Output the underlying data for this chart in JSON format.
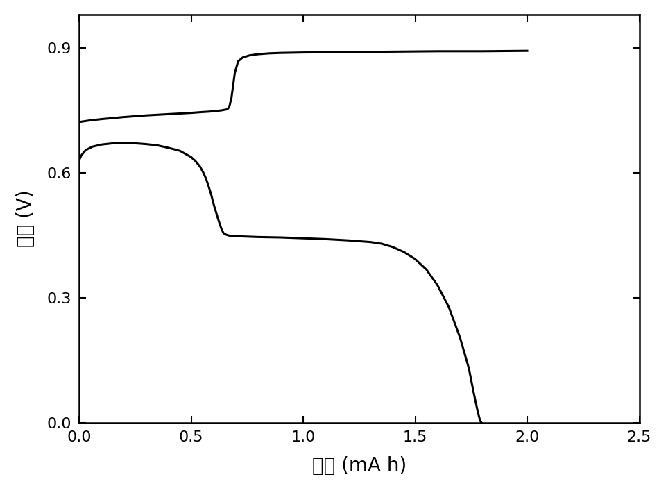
{
  "title": "",
  "xlabel": "容量 (mA h)",
  "ylabel": "电压 (V)",
  "xlim": [
    0,
    2.5
  ],
  "ylim": [
    0.0,
    0.98
  ],
  "xticks": [
    0.0,
    0.5,
    1.0,
    1.5,
    2.0,
    2.5
  ],
  "yticks": [
    0.0,
    0.3,
    0.6,
    0.9
  ],
  "line_color": "#000000",
  "line_width": 2.2,
  "background_color": "#ffffff",
  "charge_curve": {
    "x": [
      0.0,
      0.05,
      0.1,
      0.2,
      0.3,
      0.4,
      0.5,
      0.55,
      0.58,
      0.6,
      0.62,
      0.635,
      0.645,
      0.655,
      0.662,
      0.667,
      0.672,
      0.68,
      0.695,
      0.71,
      0.73,
      0.76,
      0.8,
      0.85,
      0.9,
      1.0,
      1.2,
      1.4,
      1.6,
      1.8,
      2.0
    ],
    "y": [
      0.722,
      0.726,
      0.729,
      0.734,
      0.738,
      0.741,
      0.744,
      0.746,
      0.747,
      0.748,
      0.749,
      0.75,
      0.751,
      0.752,
      0.753,
      0.756,
      0.762,
      0.78,
      0.84,
      0.868,
      0.877,
      0.882,
      0.885,
      0.887,
      0.888,
      0.889,
      0.89,
      0.891,
      0.892,
      0.892,
      0.893
    ]
  },
  "discharge_curve": {
    "x": [
      0.0,
      0.01,
      0.03,
      0.06,
      0.1,
      0.15,
      0.2,
      0.25,
      0.3,
      0.35,
      0.4,
      0.45,
      0.5,
      0.52,
      0.54,
      0.555,
      0.565,
      0.572,
      0.578,
      0.585,
      0.592,
      0.6,
      0.61,
      0.62,
      0.635,
      0.645,
      0.655,
      0.665,
      0.675,
      0.685,
      0.7,
      0.75,
      0.8,
      0.9,
      1.0,
      1.1,
      1.2,
      1.3,
      1.35,
      1.4,
      1.45,
      1.5,
      1.55,
      1.6,
      1.65,
      1.7,
      1.74,
      1.76,
      1.78,
      1.79,
      1.795
    ],
    "y": [
      0.63,
      0.642,
      0.655,
      0.663,
      0.668,
      0.671,
      0.672,
      0.671,
      0.669,
      0.666,
      0.66,
      0.653,
      0.638,
      0.628,
      0.615,
      0.6,
      0.588,
      0.578,
      0.568,
      0.556,
      0.543,
      0.526,
      0.508,
      0.49,
      0.466,
      0.455,
      0.452,
      0.45,
      0.449,
      0.449,
      0.448,
      0.447,
      0.446,
      0.445,
      0.443,
      0.441,
      0.438,
      0.434,
      0.43,
      0.422,
      0.41,
      0.393,
      0.368,
      0.33,
      0.278,
      0.205,
      0.13,
      0.075,
      0.025,
      0.005,
      0.001
    ]
  }
}
